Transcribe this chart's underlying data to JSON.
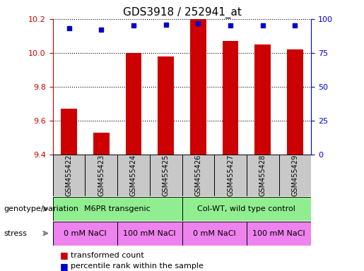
{
  "title": "GDS3918 / 252941_at",
  "categories": [
    "GSM455422",
    "GSM455423",
    "GSM455424",
    "GSM455425",
    "GSM455426",
    "GSM455427",
    "GSM455428",
    "GSM455429"
  ],
  "bar_values": [
    9.67,
    9.53,
    10.0,
    9.98,
    10.2,
    10.07,
    10.05,
    10.02
  ],
  "percentile_values": [
    93,
    92,
    95,
    96,
    97,
    95,
    95,
    95
  ],
  "ylim_left": [
    9.4,
    10.2
  ],
  "ylim_right": [
    0,
    100
  ],
  "yticks_left": [
    9.4,
    9.6,
    9.8,
    10.0,
    10.2
  ],
  "yticks_right": [
    0,
    25,
    50,
    75,
    100
  ],
  "bar_color": "#cc0000",
  "dot_color": "#0000cc",
  "genotype_groups": [
    {
      "label": "M6PR transgenic",
      "start": 0,
      "end": 3
    },
    {
      "label": "Col-WT, wild type control",
      "start": 4,
      "end": 7
    }
  ],
  "stress_groups": [
    {
      "label": "0 mM NaCl",
      "start": 0,
      "end": 1
    },
    {
      "label": "100 mM NaCl",
      "start": 2,
      "end": 3
    },
    {
      "label": "0 mM NaCl",
      "start": 4,
      "end": 5
    },
    {
      "label": "100 mM NaCl",
      "start": 6,
      "end": 7
    }
  ],
  "legend_items": [
    {
      "label": "transformed count",
      "color": "#cc0000"
    },
    {
      "label": "percentile rank within the sample",
      "color": "#0000cc"
    }
  ],
  "bar_color_left_axis": "#cc0000",
  "right_axis_color": "#0000cc",
  "green_color": "#90ee90",
  "magenta_color": "#ee82ee",
  "gray_color": "#c8c8c8",
  "title_fontsize": 11,
  "tick_fontsize": 8,
  "label_fontsize": 8,
  "anno_fontsize": 8
}
